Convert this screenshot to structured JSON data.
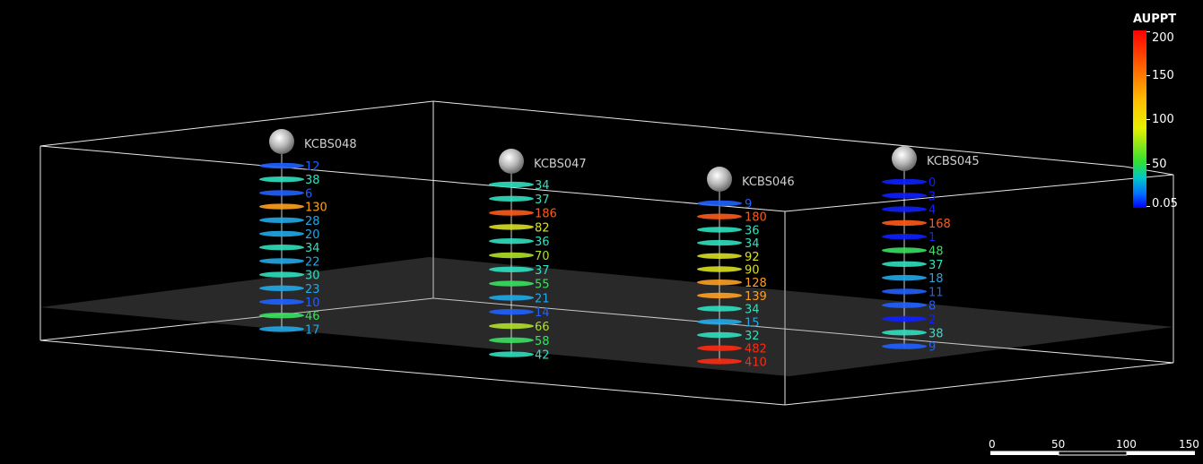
{
  "legend": {
    "title": "AUPPT",
    "labels": [
      "200",
      "150",
      "100",
      "50",
      "0.05"
    ],
    "colors": [
      "#ff0000",
      "#ff6a00",
      "#ffc000",
      "#e8f000",
      "#30e030",
      "#00c8c8",
      "#0070ff",
      "#0000ff"
    ]
  },
  "scale_bar": {
    "labels": [
      "0",
      "50",
      "100",
      "150"
    ]
  },
  "holes": [
    {
      "name": "KCBS048",
      "values": [
        "12",
        "38",
        "6",
        "130",
        "28",
        "20",
        "34",
        "22",
        "30",
        "23",
        "10",
        "46",
        "17"
      ]
    },
    {
      "name": "KCBS047",
      "values": [
        "34",
        "37",
        "186",
        "82",
        "36",
        "70",
        "37",
        "55",
        "21",
        "14",
        "66",
        "58",
        "42"
      ]
    },
    {
      "name": "KCBS046",
      "values": [
        "9",
        "180",
        "36",
        "34",
        "92",
        "90",
        "128",
        "139",
        "34",
        "15",
        "32",
        "482",
        "410"
      ]
    },
    {
      "name": "KCBS045",
      "values": [
        "0",
        "3",
        "4",
        "168",
        "1",
        "48",
        "37",
        "18",
        "11",
        "8",
        "2",
        "38",
        "9"
      ]
    }
  ]
}
